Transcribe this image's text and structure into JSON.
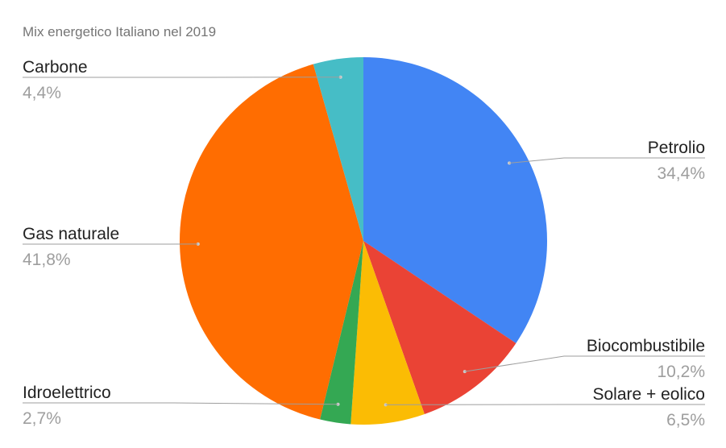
{
  "chart_data": {
    "type": "pie",
    "title": "Mix energetico Italiano nel 2019",
    "slices": [
      {
        "name": "Petrolio",
        "value": 34.4,
        "label": "34,4%",
        "color": "#4285f4"
      },
      {
        "name": "Biocombustibile",
        "value": 10.2,
        "label": "10,2%",
        "color": "#ea4335"
      },
      {
        "name": "Solare + eolico",
        "value": 6.5,
        "label": "6,5%",
        "color": "#fbbc04"
      },
      {
        "name": "Idroelettrico",
        "value": 2.7,
        "label": "2,7%",
        "color": "#34a853"
      },
      {
        "name": "Gas naturale",
        "value": 41.8,
        "label": "41,8%",
        "color": "#ff6d01"
      },
      {
        "name": "Carbone",
        "value": 4.4,
        "label": "4,4%",
        "color": "#46bdc6"
      }
    ],
    "legend": "none"
  }
}
